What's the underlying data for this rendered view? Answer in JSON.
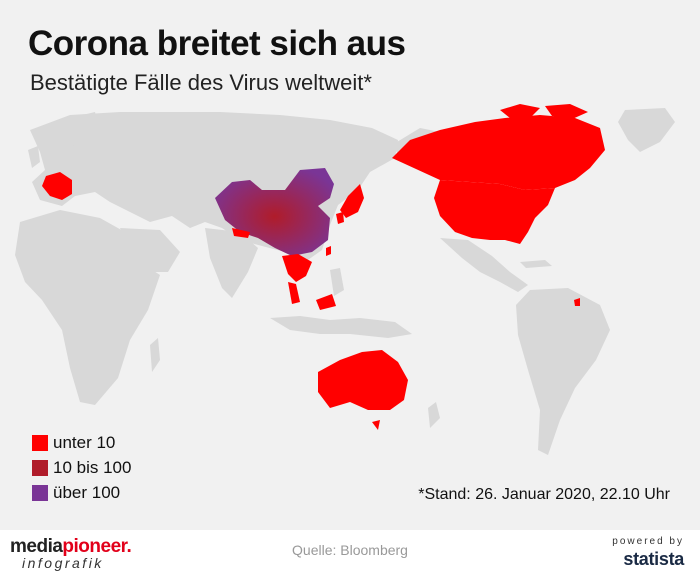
{
  "header": {
    "title": "Corona breitet sich aus",
    "subtitle": "Bestätigte Fälle des Virus weltweit*"
  },
  "map": {
    "land_color": "#d8d8d8",
    "background_color": "#f1f1f1",
    "colors": {
      "under_10": "#ff0000",
      "10_to_100": "#b01c2a",
      "over_100": "#7a3596"
    },
    "countries_under_10": [
      "France",
      "USA",
      "Canada",
      "Japan",
      "South Korea",
      "Taiwan",
      "Nepal",
      "Thailand",
      "Vietnam",
      "Malaysia",
      "Singapore",
      "Australia"
    ],
    "countries_over_100": [
      "China"
    ]
  },
  "legend": {
    "items": [
      {
        "label": "unter 10",
        "color": "#ff0000"
      },
      {
        "label": "10 bis 100",
        "color": "#b01c2a"
      },
      {
        "label": "über 100",
        "color": "#7a3596"
      }
    ]
  },
  "note": "*Stand: 26. Januar 2020, 22.10 Uhr",
  "footer": {
    "brand_prefix": "media",
    "brand_accent": "pioneer",
    "brand_dot": ".",
    "brand_sub": "infografik",
    "source": "Quelle: Bloomberg",
    "powered_by": "powered by",
    "statista": "statista"
  }
}
